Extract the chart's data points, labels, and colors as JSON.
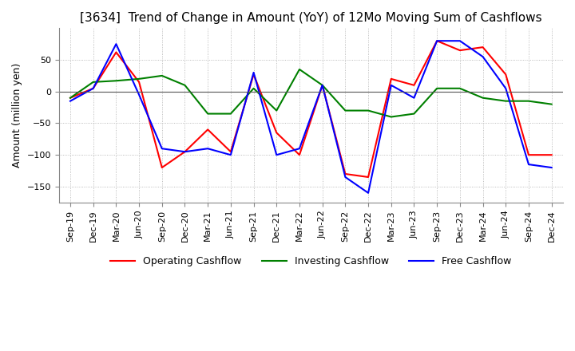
{
  "title": "[3634]  Trend of Change in Amount (YoY) of 12Mo Moving Sum of Cashflows",
  "ylabel": "Amount (million yen)",
  "x_labels": [
    "Sep-19",
    "Dec-19",
    "Mar-20",
    "Jun-20",
    "Sep-20",
    "Dec-20",
    "Mar-21",
    "Jun-21",
    "Sep-21",
    "Dec-21",
    "Mar-22",
    "Jun-22",
    "Sep-22",
    "Dec-22",
    "Mar-23",
    "Jun-23",
    "Sep-23",
    "Dec-23",
    "Mar-24",
    "Jun-24",
    "Sep-24",
    "Dec-24"
  ],
  "operating": [
    -10,
    5,
    62,
    15,
    -120,
    -95,
    -60,
    -95,
    27,
    -65,
    -100,
    10,
    -130,
    -135,
    20,
    10,
    80,
    65,
    70,
    27,
    -100,
    -100
  ],
  "investing": [
    -10,
    15,
    17,
    20,
    25,
    10,
    -35,
    -35,
    5,
    -30,
    35,
    10,
    -30,
    -30,
    -40,
    -35,
    5,
    5,
    -10,
    -15,
    -15,
    -20
  ],
  "free": [
    -15,
    5,
    75,
    -5,
    -90,
    -95,
    -90,
    -100,
    30,
    -100,
    -90,
    10,
    -135,
    -160,
    10,
    -10,
    80,
    80,
    55,
    5,
    -115,
    -120
  ],
  "ylim": [
    -175,
    100
  ],
  "yticks": [
    50,
    0,
    -50,
    -100,
    -150
  ],
  "operating_color": "#ff0000",
  "investing_color": "#008000",
  "free_color": "#0000ff",
  "legend_labels": [
    "Operating Cashflow",
    "Investing Cashflow",
    "Free Cashflow"
  ],
  "title_fontsize": 11,
  "axis_fontsize": 9,
  "tick_fontsize": 8,
  "background_color": "#ffffff",
  "grid_color": "#aaaaaa"
}
